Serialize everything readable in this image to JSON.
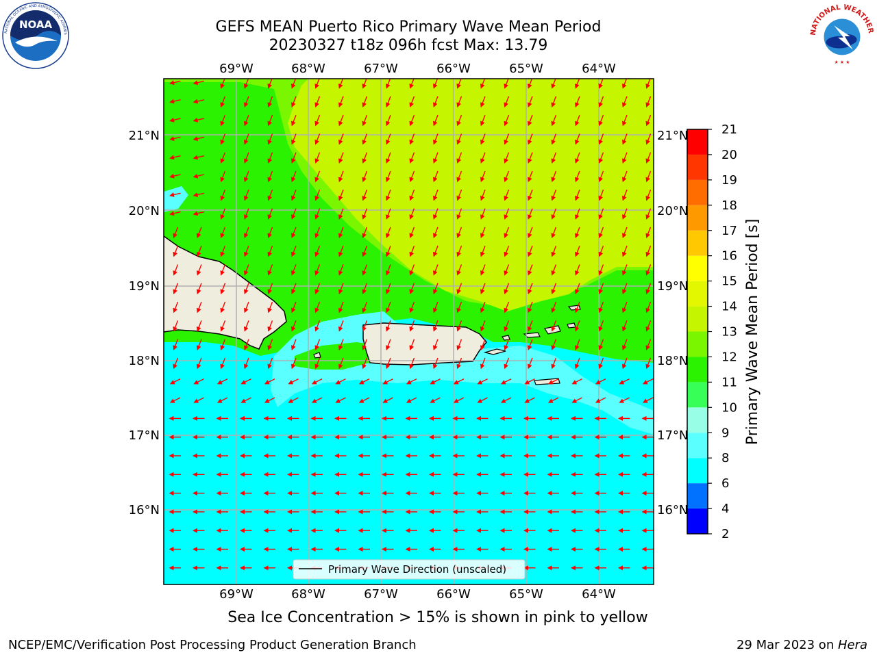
{
  "header": {
    "title": "GEFS MEAN Puerto Rico Primary Wave Mean Period",
    "subtitle": "20230327 t18z 096h fcst   Max: 13.79"
  },
  "map": {
    "lon_labels": [
      "69°W",
      "68°W",
      "67°W",
      "66°W",
      "65°W",
      "64°W"
    ],
    "lat_labels": [
      "21°N",
      "20°N",
      "19°N",
      "18°N",
      "17°N",
      "16°N"
    ],
    "land_color": "#efedde",
    "coast_color": "#000000",
    "grid_color": "#b0b0b0",
    "arrow_color": "#ff0000",
    "legend_label": "Primary Wave Direction (unscaled)"
  },
  "colorbar": {
    "label": "Primary Wave Mean Period [s]",
    "ticks": [
      "2",
      "4",
      "6",
      "8",
      "9",
      "10",
      "11",
      "12",
      "13",
      "14",
      "15",
      "16",
      "17",
      "18",
      "19",
      "20",
      "21"
    ],
    "colors": [
      "#0000ff",
      "#0072ff",
      "#00ffff",
      "#5affff",
      "#98ffe6",
      "#37ff57",
      "#2af200",
      "#7af700",
      "#c6f500",
      "#e3f800",
      "#ffff00",
      "#ffc800",
      "#ff9900",
      "#ff6c00",
      "#ff3600",
      "#ff0000"
    ]
  },
  "note": "Sea Ice Concentration > 15% is shown in pink to yellow",
  "footer": {
    "left": "NCEP/EMC/Verification Post Processing Product Generation Branch",
    "right_prefix": "29 Mar 2023 on ",
    "right_host": "Hera"
  },
  "logos": {
    "noaa_text": "NOAA",
    "nws_ring_text": "NATIONAL WEATHER SERVICE"
  }
}
